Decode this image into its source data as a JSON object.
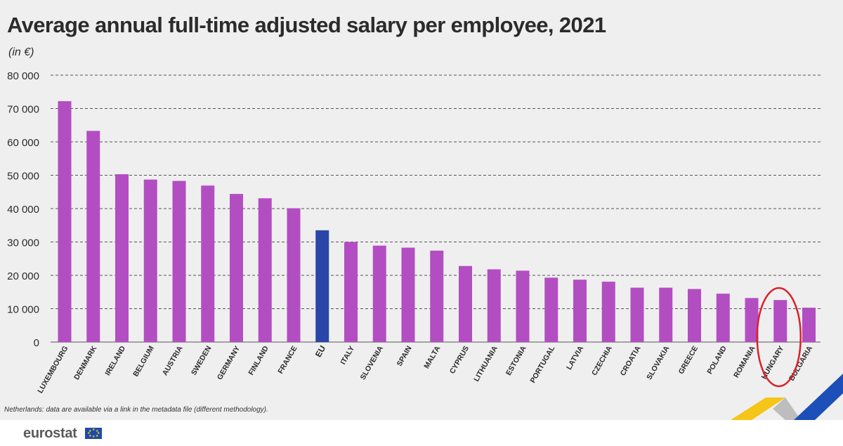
{
  "title": "Average annual full-time adjusted salary per employee, 2021",
  "unit_label": "(in €)",
  "footnote": "Netherlands: data are available via a link in the metadata file (different methodology).",
  "logo_text": "eurostat",
  "colors": {
    "bar": "#b34ec2",
    "highlight_bar": "#2b46a8",
    "grid": "#555555",
    "circle": "#d9222a",
    "deco_yellow": "#f5c518",
    "deco_blue": "#1d4fb8",
    "deco_grey": "#bdbdbd"
  },
  "chart_data": {
    "type": "bar",
    "title": "Average annual full-time adjusted salary per employee, 2021",
    "ylabel": "(in €)",
    "ylim": [
      0,
      80000
    ],
    "yticks": [
      0,
      10000,
      20000,
      30000,
      40000,
      50000,
      60000,
      70000,
      80000
    ],
    "ytick_labels": [
      "0",
      "10 000",
      "20 000",
      "30 000",
      "40 000",
      "50 000",
      "60 000",
      "70 000",
      "80 000"
    ],
    "grid": true,
    "highlight": "EU",
    "annotated_category": "HUNGARY",
    "categories": [
      "LUXEMBOURG",
      "DENMARK",
      "IRELAND",
      "BELGIUM",
      "AUSTRIA",
      "SWEDEN",
      "GERMANY",
      "FINLAND",
      "FRANCE",
      "EU",
      "ITALY",
      "SLOVENIA",
      "SPAIN",
      "MALTA",
      "CYPRUS",
      "LITHUANIA",
      "ESTONIA",
      "PORTUGAL",
      "LATVIA",
      "CZECHIA",
      "CROATIA",
      "SLOVAKIA",
      "GREECE",
      "POLAND",
      "ROMANIA",
      "HUNGARY",
      "BULGARIA"
    ],
    "values": [
      72200,
      63300,
      50300,
      48700,
      48300,
      46900,
      44400,
      43100,
      40100,
      33500,
      30000,
      28900,
      28300,
      27400,
      22800,
      21800,
      21400,
      19300,
      18700,
      18100,
      16300,
      16300,
      15900,
      14500,
      13200,
      12600,
      10300
    ]
  }
}
